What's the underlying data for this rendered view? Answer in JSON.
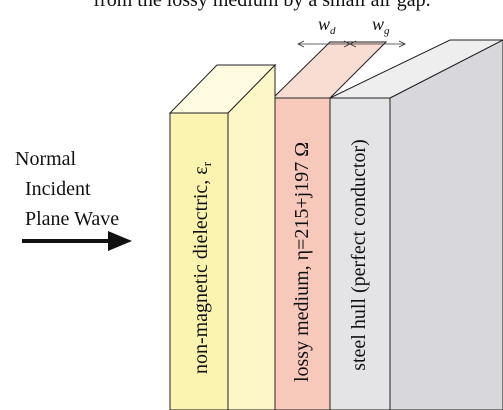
{
  "caption_fragment": "from the lossy medium by a small air gap.",
  "dimensions": [
    {
      "symbol": "w",
      "subscript": "d"
    },
    {
      "symbol": "w",
      "subscript": "g"
    }
  ],
  "wave_label": [
    "Normal",
    "Incident",
    "Plane Wave"
  ],
  "layers": [
    {
      "label": "non-magnetic dielectric, ε",
      "subscript": "r"
    },
    {
      "label": "lossy medium, η=215+j197 Ω"
    },
    {
      "label": "steel hull (perfect conductor)"
    }
  ]
}
